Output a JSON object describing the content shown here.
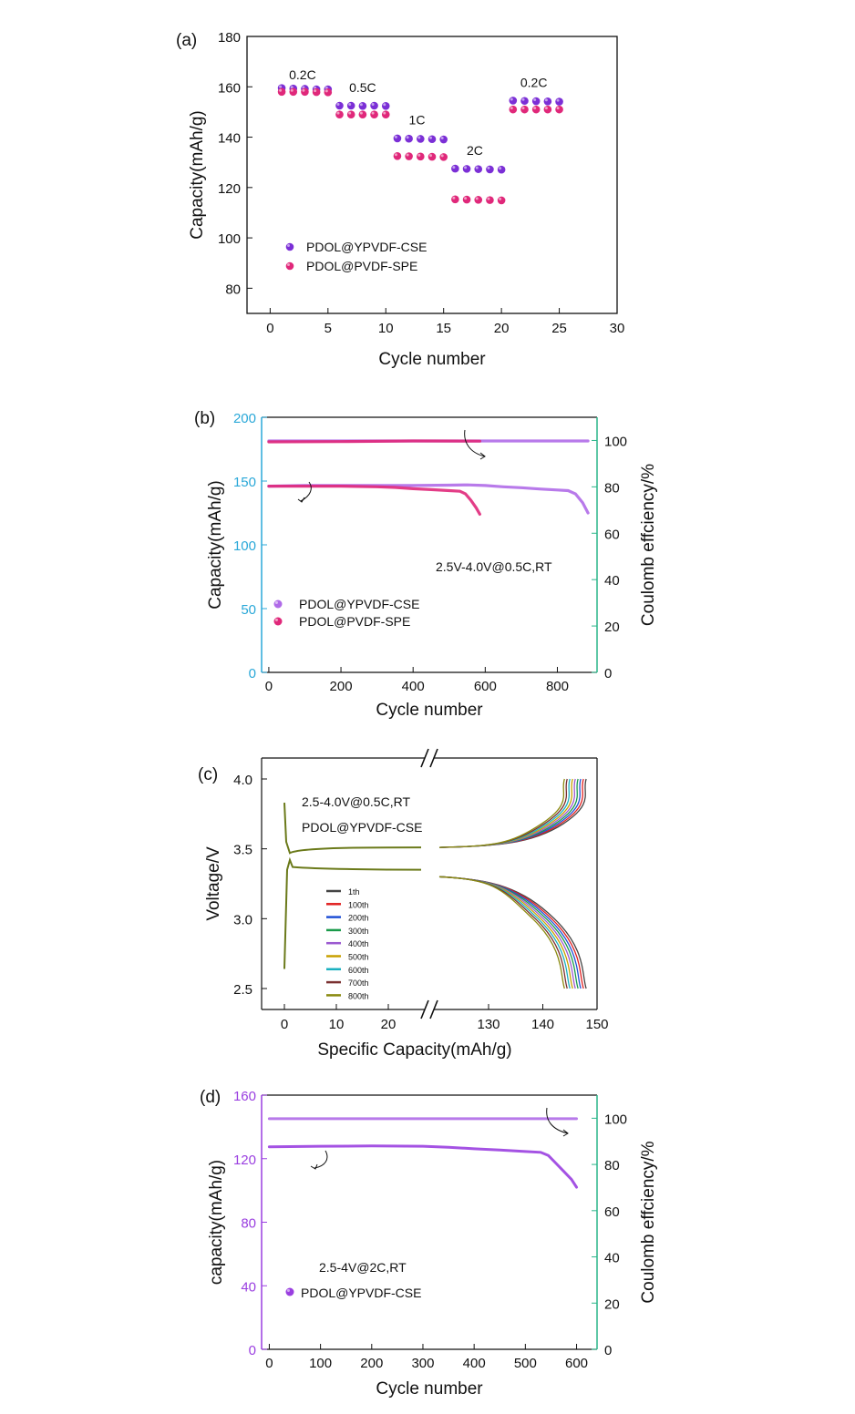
{
  "chart_data": [
    {
      "panel": "(a)",
      "type": "scatter",
      "xlabel": "Cycle number",
      "ylabel": "Capacity(mAh/g)",
      "xlim": [
        -2,
        30
      ],
      "ylim": [
        70,
        180
      ],
      "xticks": [
        0,
        5,
        10,
        15,
        20,
        25,
        30
      ],
      "yticks": [
        80,
        100,
        120,
        140,
        160,
        180
      ],
      "rate_labels": [
        {
          "text": "0.2C",
          "x": 2.8,
          "y": 163
        },
        {
          "text": "0.5C",
          "x": 8.0,
          "y": 158
        },
        {
          "text": "1C",
          "x": 12.7,
          "y": 145
        },
        {
          "text": "2C",
          "x": 17.7,
          "y": 133
        },
        {
          "text": "0.2C",
          "x": 22.8,
          "y": 160
        }
      ],
      "series": [
        {
          "name": "PDOL@YPVDF-CSE",
          "color": "#7b2fd6",
          "x": [
            1,
            2,
            3,
            4,
            5,
            6,
            7,
            8,
            9,
            10,
            11,
            12,
            13,
            14,
            15,
            16,
            17,
            18,
            19,
            20,
            21,
            22,
            23,
            24,
            25
          ],
          "y": [
            159.5,
            159.3,
            159.2,
            159,
            159,
            152.5,
            152.5,
            152.4,
            152.5,
            152.4,
            139.5,
            139.4,
            139.3,
            139.2,
            139.1,
            127.5,
            127.4,
            127.3,
            127.2,
            127.1,
            154.5,
            154.4,
            154.3,
            154.2,
            154.1
          ]
        },
        {
          "name": "PDOL@PVDF-SPE",
          "color": "#e0287a",
          "x": [
            1,
            2,
            3,
            4,
            5,
            6,
            7,
            8,
            9,
            10,
            11,
            12,
            13,
            14,
            15,
            16,
            17,
            18,
            19,
            20,
            21,
            22,
            23,
            24,
            25
          ],
          "y": [
            158,
            158,
            158,
            157.9,
            157.8,
            149,
            149,
            149,
            149,
            149,
            132.5,
            132.4,
            132.3,
            132.2,
            132.1,
            115.3,
            115.2,
            115.1,
            115,
            114.9,
            151,
            151,
            151,
            151,
            151
          ]
        }
      ]
    },
    {
      "panel": "(b)",
      "type": "line",
      "xlabel": "Cycle number",
      "ylabel": "Capacity(mAh/g)",
      "y2label": "Coulomb effciency/%",
      "xlim": [
        -20,
        910
      ],
      "ylim": [
        0,
        200
      ],
      "y2lim": [
        0,
        110
      ],
      "xticks": [
        0,
        200,
        400,
        600,
        800
      ],
      "yticks": [
        0,
        50,
        100,
        150,
        200
      ],
      "y2ticks": [
        0,
        20,
        40,
        60,
        80,
        100
      ],
      "annotation": "2.5V-4.0V@0.5C,RT",
      "series": [
        {
          "name": "PDOL@YPVDF-CSE",
          "color": "#b06be8",
          "axis": "left",
          "x": [
            0,
            100,
            200,
            300,
            400,
            500,
            550,
            600,
            650,
            700,
            750,
            800,
            830,
            850,
            870,
            885
          ],
          "y": [
            146,
            146.5,
            146.5,
            146.5,
            146.5,
            146.8,
            147,
            146.5,
            145.5,
            144.8,
            143.8,
            143,
            142.5,
            140,
            133,
            125
          ]
        },
        {
          "name": "PDOL@PVDF-SPE",
          "color": "#e0287a",
          "axis": "left",
          "x": [
            0,
            100,
            200,
            300,
            350,
            400,
            450,
            500,
            530,
            545,
            560,
            575,
            585
          ],
          "y": [
            146,
            146,
            146,
            145.5,
            145,
            144,
            143.3,
            142.5,
            142,
            140,
            135,
            129,
            124
          ]
        },
        {
          "name": "PDOL@YPVDF-CSE CE",
          "color": "#b06be8",
          "axis": "right",
          "x": [
            0,
            885
          ],
          "y": [
            99.8,
            99.8
          ]
        },
        {
          "name": "PDOL@PVDF-SPE CE",
          "color": "#e0287a",
          "axis": "right",
          "x": [
            0,
            200,
            400,
            585
          ],
          "y": [
            99.4,
            99.5,
            99.8,
            99.7
          ]
        }
      ]
    },
    {
      "panel": "(c)",
      "type": "line",
      "xlabel": "Specific Capacity(mAh/g)",
      "ylabel": "Voltage/V",
      "annotation_line1": "2.5-4.0V@0.5C,RT",
      "annotation_line2": "PDOL@YPVDF-CSE",
      "ylim": [
        2.35,
        4.15
      ],
      "yticks": [
        2.5,
        3.0,
        3.5,
        4.0
      ],
      "xticks_left": [
        0,
        10,
        20
      ],
      "xticks_right": [
        130,
        140,
        150
      ],
      "x_break": "//",
      "legend": [
        "1th",
        "100th",
        "200th",
        "300th",
        "400th",
        "500th",
        "600th",
        "700th",
        "800th"
      ],
      "colors": [
        "#444444",
        "#e02020",
        "#1f4fd6",
        "#1a9a4a",
        "#9b59d0",
        "#c8a000",
        "#1ab0c0",
        "#7a3030",
        "#8a8a10"
      ],
      "end_capacity": [
        148,
        147.5,
        147,
        146.5,
        146,
        145.5,
        145,
        144.5,
        144
      ]
    },
    {
      "panel": "(d)",
      "type": "line",
      "xlabel": "Cycle number",
      "ylabel": "capacity(mAh/g)",
      "y2label": "Coulomb effciency/%",
      "xlim": [
        -15,
        640
      ],
      "ylim": [
        0,
        160
      ],
      "y2lim": [
        0,
        110
      ],
      "xticks": [
        0,
        100,
        200,
        300,
        400,
        500,
        600
      ],
      "yticks": [
        0,
        40,
        80,
        120,
        160
      ],
      "y2ticks": [
        0,
        20,
        40,
        60,
        80,
        100
      ],
      "annotation": "2.5-4V@2C,RT",
      "series": [
        {
          "name": "PDOL@YPVDF-CSE",
          "color": "#9a3fe0",
          "axis": "left",
          "x": [
            0,
            100,
            200,
            300,
            350,
            400,
            450,
            500,
            530,
            545,
            560,
            575,
            590,
            600
          ],
          "y": [
            127.5,
            127.8,
            128,
            127.8,
            127.2,
            126.2,
            125.5,
            124.5,
            124,
            122,
            117,
            112,
            107,
            102
          ]
        },
        {
          "name": "PDOL@YPVDF-CSE CE",
          "color": "#b06be8",
          "axis": "right",
          "x": [
            0,
            600
          ],
          "y": [
            99.8,
            99.8
          ]
        }
      ]
    }
  ]
}
